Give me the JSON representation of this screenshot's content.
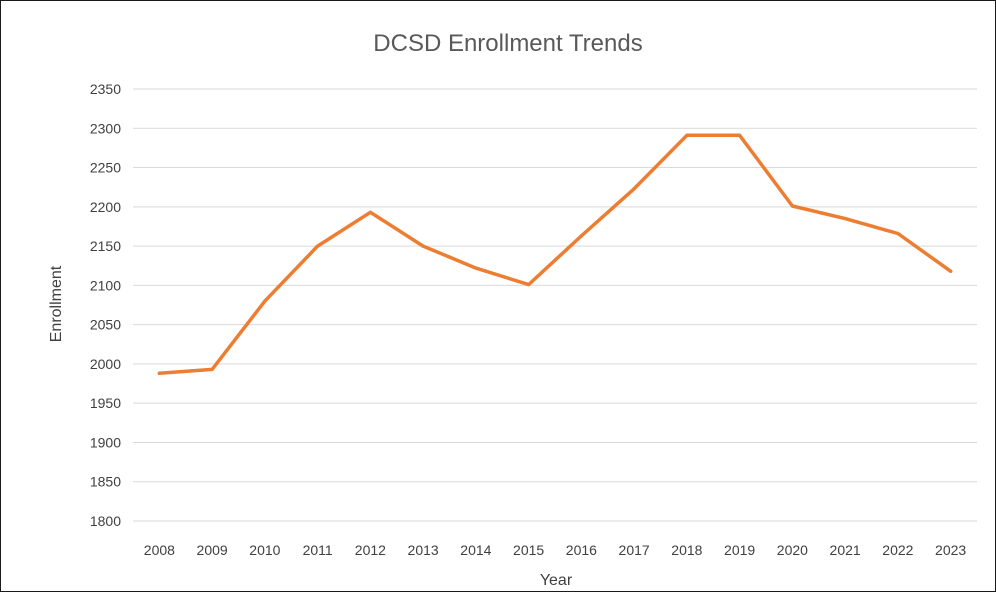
{
  "chart_data": {
    "type": "line",
    "title": "DCSD Enrollment Trends",
    "xlabel": "Year",
    "ylabel": "Enrollment",
    "categories": [
      "2008",
      "2009",
      "2010",
      "2011",
      "2012",
      "2013",
      "2014",
      "2015",
      "2016",
      "2017",
      "2018",
      "2019",
      "2020",
      "2021",
      "2022",
      "2023"
    ],
    "series": [
      {
        "values": [
          1988,
          1993,
          2080,
          2150,
          2193,
          2150,
          2122,
          2101,
          2163,
          2223,
          2291,
          2291,
          2201,
          2185,
          2166,
          2118
        ]
      }
    ],
    "ylim": [
      1800,
      2350
    ],
    "yticks": [
      1800,
      1850,
      1900,
      1950,
      2000,
      2050,
      2100,
      2150,
      2200,
      2250,
      2300,
      2350
    ],
    "grid": true,
    "legend": "none",
    "colors": {
      "line": "#ED7D31",
      "grid": "#D9D9D9",
      "text": "#404040",
      "title": "#595959"
    }
  }
}
